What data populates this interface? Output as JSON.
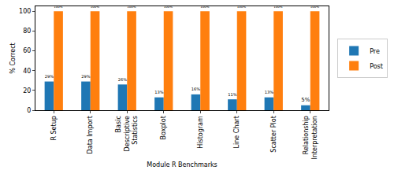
{
  "chart_data": {
    "type": "bar",
    "x_label": "Module R Benchmarks",
    "y_label": "% Correct",
    "categories": [
      "R Setup",
      "Data Import",
      "Basic Descriptive Statistics",
      "Boxplot",
      "Histogram",
      "Line Chart",
      "Scatter Plot",
      "Relationship Interpretation"
    ],
    "series": [
      {
        "name": "Pre",
        "color": "#1f77b4",
        "values": [
          29,
          29,
          26,
          13,
          16,
          11,
          13,
          5
        ],
        "value_labels": [
          "29%",
          "29%",
          "26%",
          "13%",
          "16%",
          "11%",
          "13%",
          "5%"
        ]
      },
      {
        "name": "Post",
        "color": "#ff7f0e",
        "values": [
          100,
          100,
          100,
          100,
          100,
          100,
          100,
          100
        ],
        "value_labels": [
          "100%",
          "100%",
          "100%",
          "100%",
          "100%",
          "100%",
          "100%",
          "100%"
        ]
      }
    ],
    "ylim": [
      0,
      105
    ],
    "yticks": [
      0,
      20,
      40,
      60,
      80,
      100
    ],
    "grid": false,
    "legend": "right",
    "data_labels": true
  }
}
